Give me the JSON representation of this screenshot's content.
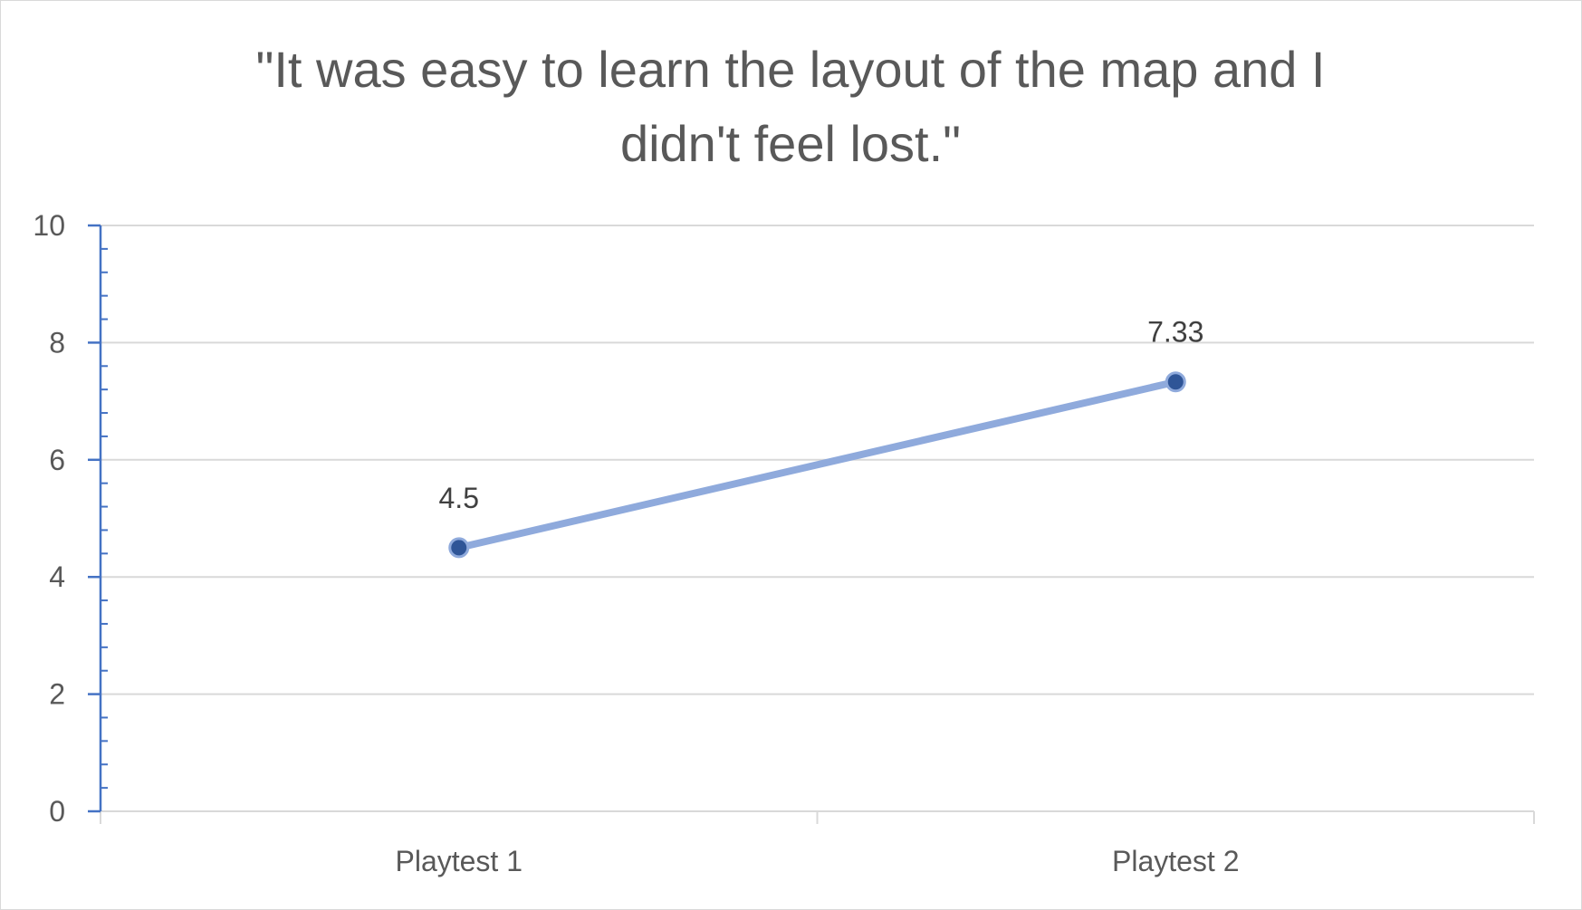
{
  "chart_data": {
    "type": "line",
    "title_lines": [
      "\"It was easy to learn the layout of the map and I",
      "didn't feel lost.\""
    ],
    "categories": [
      "Playtest 1",
      "Playtest 2"
    ],
    "series": [
      {
        "values": [
          4.5,
          7.33
        ],
        "data_labels": [
          "4.5",
          "7.33"
        ]
      }
    ],
    "ylim": [
      0,
      10
    ],
    "yticks": [
      0,
      2,
      4,
      6,
      8,
      10
    ],
    "ytick_labels": [
      "0",
      "2",
      "4",
      "6",
      "8",
      "10"
    ],
    "grid": true,
    "legend": "none",
    "colors": {
      "line": "#8faadc",
      "marker_fill": "#2f5597",
      "marker_stroke": "#8faadc",
      "axis": "#4472c4",
      "gridline": "#d9d9d9"
    }
  }
}
